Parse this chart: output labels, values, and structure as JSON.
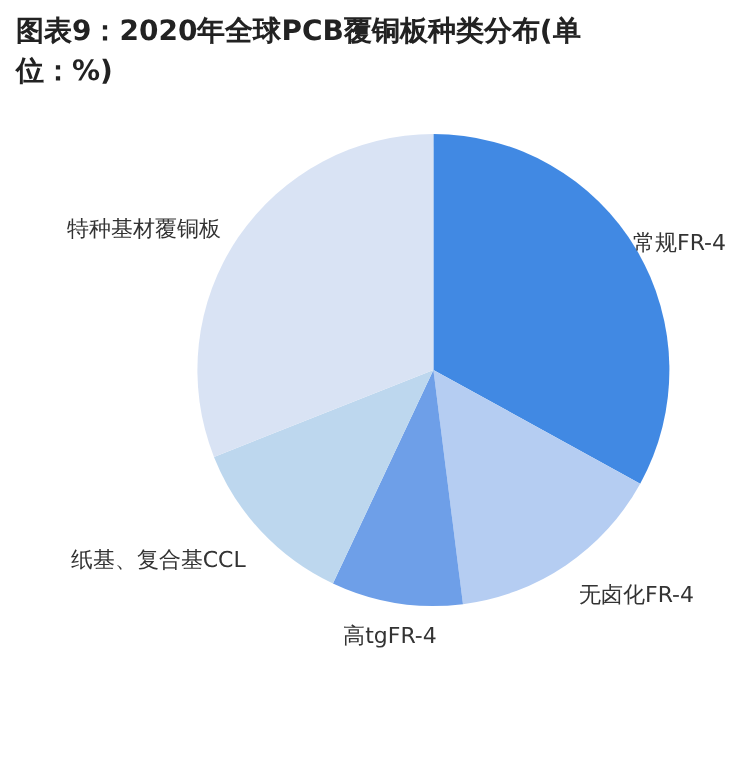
{
  "chart_data": {
    "type": "pie",
    "title": "图表9：2020年全球PCB覆铜板种类分布(单位：%)",
    "categories": [
      "常规FR-4",
      "无卤化FR-4",
      "高tgFR-4",
      "纸基、复合基CCL",
      "特种基材覆铜板"
    ],
    "values": [
      33,
      15,
      9,
      12,
      31
    ],
    "colors": [
      "#4189e3",
      "#b5cdf2",
      "#6e9fe8",
      "#bdd7ee",
      "#d9e3f4"
    ]
  }
}
